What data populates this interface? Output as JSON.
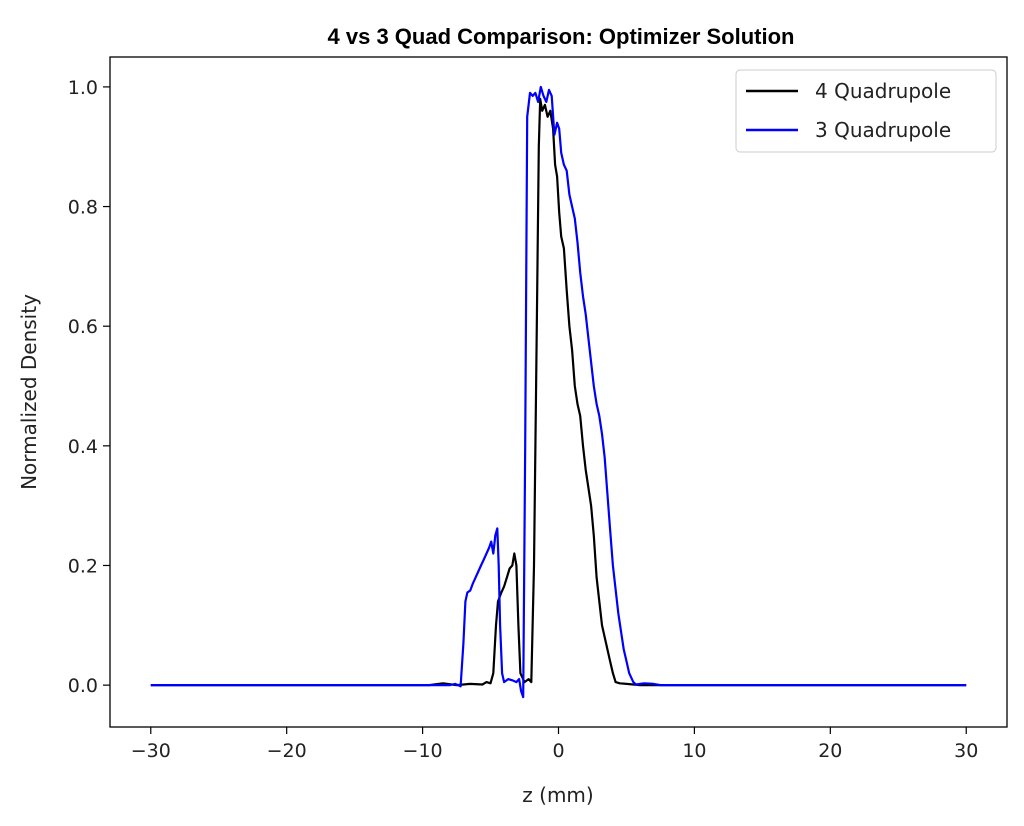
{
  "chart_data": {
    "type": "line",
    "title": "4 vs 3 Quad Comparison: Optimizer Solution",
    "xlabel": "z (mm)",
    "ylabel": "Normalized Density",
    "xlim": [
      -33,
      33
    ],
    "ylim": [
      -0.07,
      1.05
    ],
    "xticks": [
      -30,
      -20,
      -10,
      0,
      10,
      20,
      30
    ],
    "xtick_labels": [
      "−30",
      "−20",
      "−10",
      "0",
      "10",
      "20",
      "30"
    ],
    "yticks": [
      0.0,
      0.2,
      0.4,
      0.6,
      0.8,
      1.0
    ],
    "ytick_labels": [
      "0.0",
      "0.2",
      "0.4",
      "0.6",
      "0.8",
      "1.0"
    ],
    "grid": false,
    "legend": "upper-right",
    "series": [
      {
        "name": "4 Quadrupole",
        "color": "#000000",
        "points": [
          [
            -30,
            0.0
          ],
          [
            -9.5,
            0.0
          ],
          [
            -8.5,
            0.003
          ],
          [
            -7.5,
            0.0
          ],
          [
            -6.5,
            0.002
          ],
          [
            -5.6,
            0.001
          ],
          [
            -5.3,
            0.005
          ],
          [
            -5.0,
            0.003
          ],
          [
            -4.8,
            0.02
          ],
          [
            -4.6,
            0.1
          ],
          [
            -4.45,
            0.14
          ],
          [
            -4.2,
            0.155
          ],
          [
            -4.0,
            0.165
          ],
          [
            -3.8,
            0.18
          ],
          [
            -3.6,
            0.195
          ],
          [
            -3.4,
            0.2
          ],
          [
            -3.25,
            0.22
          ],
          [
            -3.1,
            0.2
          ],
          [
            -2.95,
            0.1
          ],
          [
            -2.8,
            0.02
          ],
          [
            -2.5,
            0.005
          ],
          [
            -2.2,
            0.01
          ],
          [
            -2.0,
            0.005
          ],
          [
            -1.8,
            0.2
          ],
          [
            -1.6,
            0.6
          ],
          [
            -1.45,
            0.9
          ],
          [
            -1.35,
            0.98
          ],
          [
            -1.2,
            0.96
          ],
          [
            -1.0,
            0.97
          ],
          [
            -0.8,
            0.95
          ],
          [
            -0.6,
            0.96
          ],
          [
            -0.4,
            0.93
          ],
          [
            -0.25,
            0.87
          ],
          [
            -0.1,
            0.85
          ],
          [
            0.05,
            0.79
          ],
          [
            0.2,
            0.75
          ],
          [
            0.4,
            0.73
          ],
          [
            0.6,
            0.66
          ],
          [
            0.8,
            0.6
          ],
          [
            1.0,
            0.56
          ],
          [
            1.2,
            0.5
          ],
          [
            1.4,
            0.47
          ],
          [
            1.6,
            0.45
          ],
          [
            1.8,
            0.4
          ],
          [
            2.0,
            0.36
          ],
          [
            2.2,
            0.33
          ],
          [
            2.4,
            0.3
          ],
          [
            2.6,
            0.25
          ],
          [
            2.8,
            0.18
          ],
          [
            3.0,
            0.14
          ],
          [
            3.2,
            0.1
          ],
          [
            3.4,
            0.08
          ],
          [
            3.6,
            0.06
          ],
          [
            3.8,
            0.04
          ],
          [
            4.0,
            0.02
          ],
          [
            4.2,
            0.005
          ],
          [
            4.5,
            0.003
          ],
          [
            5.0,
            0.002
          ],
          [
            6.0,
            0.0
          ],
          [
            30,
            0.0
          ]
        ]
      },
      {
        "name": "3 Quadrupole",
        "color": "#0000ff",
        "points": [
          [
            -30,
            0.0
          ],
          [
            -8.0,
            0.0
          ],
          [
            -7.6,
            0.002
          ],
          [
            -7.4,
            0.0
          ],
          [
            -7.2,
            -0.002
          ],
          [
            -7.0,
            0.07
          ],
          [
            -6.85,
            0.14
          ],
          [
            -6.7,
            0.155
          ],
          [
            -6.5,
            0.158
          ],
          [
            -6.3,
            0.17
          ],
          [
            -6.1,
            0.18
          ],
          [
            -5.9,
            0.19
          ],
          [
            -5.7,
            0.2
          ],
          [
            -5.5,
            0.21
          ],
          [
            -5.3,
            0.22
          ],
          [
            -5.1,
            0.23
          ],
          [
            -4.95,
            0.24
          ],
          [
            -4.8,
            0.22
          ],
          [
            -4.65,
            0.25
          ],
          [
            -4.5,
            0.262
          ],
          [
            -4.4,
            0.2
          ],
          [
            -4.3,
            0.1
          ],
          [
            -4.15,
            0.02
          ],
          [
            -4.0,
            0.005
          ],
          [
            -3.7,
            0.01
          ],
          [
            -3.4,
            0.008
          ],
          [
            -3.1,
            0.005
          ],
          [
            -2.9,
            0.01
          ],
          [
            -2.75,
            -0.01
          ],
          [
            -2.6,
            -0.02
          ],
          [
            -2.45,
            0.4
          ],
          [
            -2.3,
            0.95
          ],
          [
            -2.1,
            0.99
          ],
          [
            -1.9,
            0.985
          ],
          [
            -1.7,
            0.99
          ],
          [
            -1.5,
            0.975
          ],
          [
            -1.3,
            1.0
          ],
          [
            -1.1,
            0.985
          ],
          [
            -0.9,
            0.975
          ],
          [
            -0.7,
            0.995
          ],
          [
            -0.5,
            0.985
          ],
          [
            -0.3,
            0.92
          ],
          [
            -0.1,
            0.94
          ],
          [
            0.05,
            0.93
          ],
          [
            0.2,
            0.89
          ],
          [
            0.4,
            0.87
          ],
          [
            0.6,
            0.86
          ],
          [
            0.8,
            0.82
          ],
          [
            1.0,
            0.8
          ],
          [
            1.2,
            0.78
          ],
          [
            1.4,
            0.74
          ],
          [
            1.6,
            0.69
          ],
          [
            1.8,
            0.65
          ],
          [
            2.0,
            0.62
          ],
          [
            2.2,
            0.58
          ],
          [
            2.4,
            0.54
          ],
          [
            2.6,
            0.5
          ],
          [
            2.8,
            0.47
          ],
          [
            3.0,
            0.45
          ],
          [
            3.2,
            0.42
          ],
          [
            3.4,
            0.38
          ],
          [
            3.6,
            0.32
          ],
          [
            3.8,
            0.26
          ],
          [
            4.0,
            0.2
          ],
          [
            4.2,
            0.16
          ],
          [
            4.4,
            0.12
          ],
          [
            4.6,
            0.09
          ],
          [
            4.8,
            0.06
          ],
          [
            5.0,
            0.04
          ],
          [
            5.2,
            0.02
          ],
          [
            5.5,
            0.005
          ],
          [
            5.7,
            0.001
          ],
          [
            6.3,
            0.003
          ],
          [
            7.0,
            0.002
          ],
          [
            7.5,
            0.0
          ],
          [
            30,
            0.0
          ]
        ]
      }
    ]
  }
}
